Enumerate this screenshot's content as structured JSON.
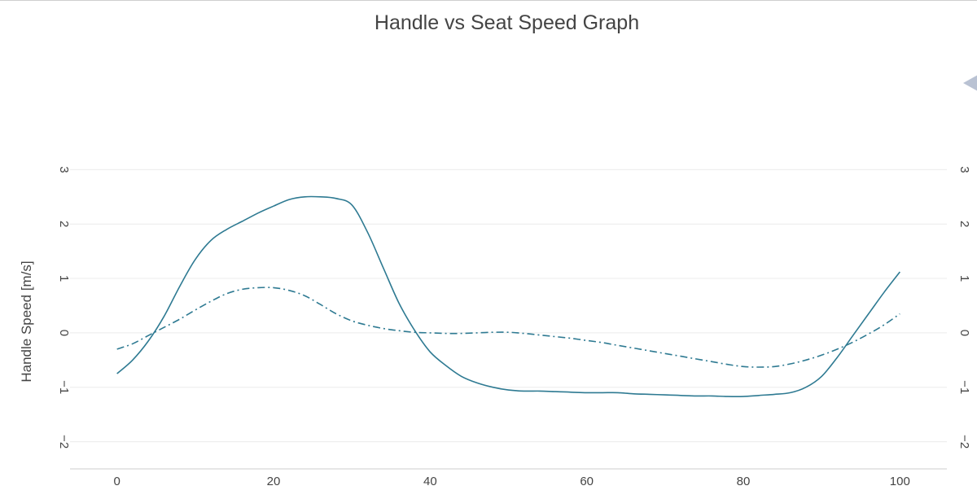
{
  "chart_data": {
    "type": "line",
    "title": "Handle vs Seat Speed Graph",
    "ylabel": "Handle Speed [m/s]",
    "xlabel": "",
    "xlim": [
      -6,
      106
    ],
    "ylim": [
      -2.5,
      3.2
    ],
    "x_ticks": [
      0,
      20,
      40,
      60,
      80,
      100
    ],
    "y_ticks": [
      -2,
      -1,
      0,
      1,
      2,
      3
    ],
    "y_ticks_right": [
      -2,
      -1,
      0,
      1,
      2,
      3
    ],
    "y_tick_labels": [
      "−2",
      "−1",
      "0",
      "1",
      "2",
      "3"
    ],
    "grid": true,
    "colors": {
      "line": "#2e7a92",
      "grid": "#ececec",
      "text": "#444444"
    },
    "series": [
      {
        "style": "solid",
        "x": [
          0,
          2,
          4,
          6,
          8,
          10,
          12,
          14,
          16,
          18,
          20,
          22,
          24,
          26,
          28,
          30,
          32,
          34,
          36,
          38,
          40,
          42,
          44,
          46,
          48,
          50,
          52,
          54,
          56,
          58,
          60,
          62,
          64,
          66,
          68,
          70,
          72,
          74,
          76,
          78,
          80,
          82,
          84,
          86,
          88,
          90,
          92,
          94,
          96,
          98,
          100
        ],
        "y": [
          -0.75,
          -0.5,
          -0.15,
          0.3,
          0.85,
          1.35,
          1.7,
          1.9,
          2.05,
          2.2,
          2.33,
          2.45,
          2.5,
          2.5,
          2.47,
          2.35,
          1.85,
          1.2,
          0.55,
          0.05,
          -0.35,
          -0.6,
          -0.8,
          -0.92,
          -1.0,
          -1.05,
          -1.07,
          -1.07,
          -1.08,
          -1.09,
          -1.1,
          -1.1,
          -1.1,
          -1.12,
          -1.13,
          -1.14,
          -1.15,
          -1.16,
          -1.16,
          -1.17,
          -1.17,
          -1.15,
          -1.13,
          -1.1,
          -1.0,
          -0.8,
          -0.45,
          -0.05,
          0.35,
          0.75,
          1.12
        ]
      },
      {
        "style": "dashdot",
        "x": [
          0,
          2,
          4,
          6,
          8,
          10,
          12,
          14,
          16,
          18,
          20,
          22,
          24,
          26,
          28,
          30,
          32,
          34,
          36,
          38,
          40,
          42,
          44,
          46,
          48,
          50,
          52,
          54,
          56,
          58,
          60,
          62,
          64,
          66,
          68,
          70,
          72,
          74,
          76,
          78,
          80,
          82,
          84,
          86,
          88,
          90,
          92,
          94,
          96,
          98,
          100
        ],
        "y": [
          -0.3,
          -0.2,
          -0.05,
          0.1,
          0.25,
          0.42,
          0.58,
          0.72,
          0.8,
          0.83,
          0.83,
          0.78,
          0.68,
          0.52,
          0.35,
          0.22,
          0.14,
          0.08,
          0.04,
          0.01,
          0.0,
          -0.01,
          -0.01,
          0.0,
          0.01,
          0.01,
          -0.01,
          -0.04,
          -0.07,
          -0.1,
          -0.14,
          -0.18,
          -0.23,
          -0.28,
          -0.33,
          -0.38,
          -0.43,
          -0.48,
          -0.53,
          -0.58,
          -0.62,
          -0.63,
          -0.62,
          -0.57,
          -0.5,
          -0.41,
          -0.3,
          -0.17,
          -0.02,
          0.15,
          0.35
        ]
      }
    ]
  }
}
